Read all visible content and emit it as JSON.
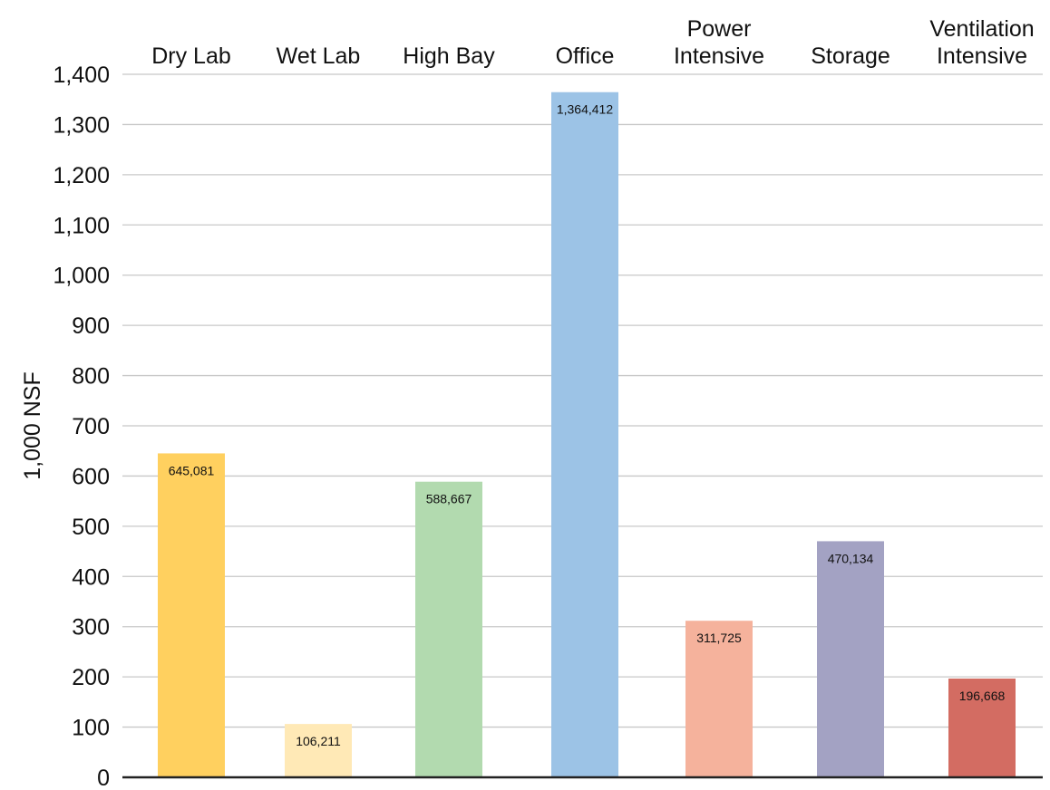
{
  "chart_data": {
    "type": "bar",
    "categories": [
      [
        "Dry Lab"
      ],
      [
        "Wet Lab"
      ],
      [
        "High Bay"
      ],
      [
        "Office"
      ],
      [
        "Power",
        "Intensive"
      ],
      [
        "Storage"
      ],
      [
        "Ventilation",
        "Intensive"
      ]
    ],
    "values": [
      645.081,
      106.211,
      588.667,
      1364.412,
      311.725,
      470.134,
      196.668
    ],
    "data_labels": [
      "645,081",
      "106,211",
      "588,667",
      "1,364,412",
      "311,725",
      "470,134",
      "196,668"
    ],
    "colors": [
      "#FFD05F",
      "#FFE9B6",
      "#B2DAAF",
      "#9CC3E6",
      "#F5B29C",
      "#A3A2C3",
      "#D36C62"
    ],
    "ylabel": "1,000 NSF",
    "ylim": [
      0,
      1400
    ],
    "yticks": [
      0,
      100,
      200,
      300,
      400,
      500,
      600,
      700,
      800,
      900,
      1000,
      1100,
      1200,
      1300,
      1400
    ],
    "ytick_labels": [
      "0",
      "100",
      "200",
      "300",
      "400",
      "500",
      "600",
      "700",
      "800",
      "900",
      "1,000",
      "1,100",
      "1,200",
      "1,300",
      "1,400"
    ],
    "category_label_position": "top",
    "grid": true,
    "legend": "none"
  }
}
